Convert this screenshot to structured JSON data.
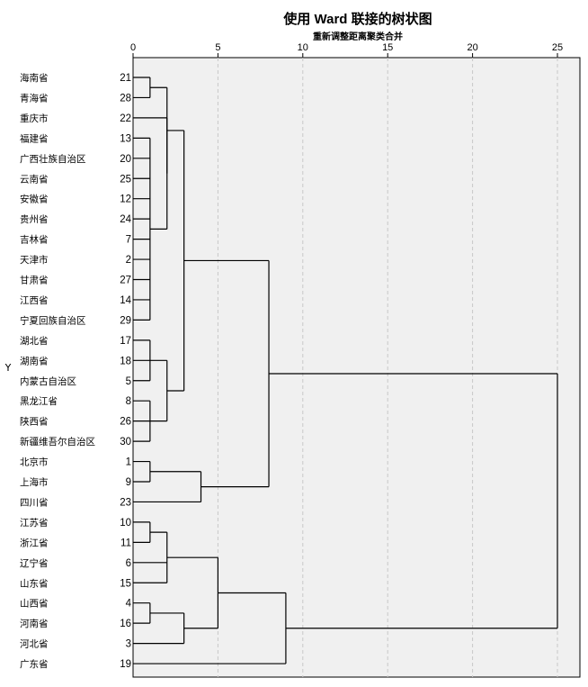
{
  "chart_data": {
    "type": "dendrogram",
    "title": "使用 Ward 联接的树状图",
    "xlabel": "重新调整距离聚类合并",
    "ylabel": "Y",
    "xlim": [
      0,
      25
    ],
    "x_ticks": [
      0,
      5,
      10,
      15,
      20,
      25
    ],
    "grid": "vertical-dashed",
    "plot_background": "#f0f0f0",
    "line_color": "#000000",
    "leaves": [
      {
        "name": "海南省",
        "id": "21"
      },
      {
        "name": "青海省",
        "id": "28"
      },
      {
        "name": "重庆市",
        "id": "22"
      },
      {
        "name": "福建省",
        "id": "13"
      },
      {
        "name": "广西壮族自治区",
        "id": "20"
      },
      {
        "name": "云南省",
        "id": "25"
      },
      {
        "name": "安徽省",
        "id": "12"
      },
      {
        "name": "贵州省",
        "id": "24"
      },
      {
        "name": "吉林省",
        "id": "7"
      },
      {
        "name": "天津市",
        "id": "2"
      },
      {
        "name": "甘肃省",
        "id": "27"
      },
      {
        "name": "江西省",
        "id": "14"
      },
      {
        "name": "宁夏回族自治区",
        "id": "29"
      },
      {
        "name": "湖北省",
        "id": "17"
      },
      {
        "name": "湖南省",
        "id": "18"
      },
      {
        "name": "内蒙古自治区",
        "id": "5"
      },
      {
        "name": "黑龙江省",
        "id": "8"
      },
      {
        "name": "陕西省",
        "id": "26"
      },
      {
        "name": "新疆维吾尔自治区",
        "id": "30"
      },
      {
        "name": "北京市",
        "id": "1"
      },
      {
        "name": "上海市",
        "id": "9"
      },
      {
        "name": "四川省",
        "id": "23"
      },
      {
        "name": "江苏省",
        "id": "10"
      },
      {
        "name": "浙江省",
        "id": "11"
      },
      {
        "name": "辽宁省",
        "id": "6"
      },
      {
        "name": "山东省",
        "id": "15"
      },
      {
        "name": "山西省",
        "id": "4"
      },
      {
        "name": "河南省",
        "id": "16"
      },
      {
        "name": "河北省",
        "id": "3"
      },
      {
        "name": "广东省",
        "id": "19"
      }
    ],
    "merges": [
      {
        "children": [
          0,
          1
        ],
        "distance": 1.0
      },
      {
        "children": [
          3,
          4,
          5,
          6,
          7,
          8,
          9,
          10,
          11,
          12
        ],
        "distance": 1.0
      },
      {
        "children": [
          31,
          2
        ],
        "distance": 2.0
      },
      {
        "children": [
          32,
          30
        ],
        "distance": 2.0
      },
      {
        "children": [
          13,
          14,
          15
        ],
        "distance": 1.0
      },
      {
        "children": [
          16,
          17,
          18
        ],
        "distance": 1.0
      },
      {
        "children": [
          34,
          35
        ],
        "distance": 2.0
      },
      {
        "children": [
          33,
          36
        ],
        "distance": 3.0
      },
      {
        "children": [
          19,
          20
        ],
        "distance": 1.0
      },
      {
        "children": [
          38,
          21
        ],
        "distance": 4.0
      },
      {
        "children": [
          37,
          39
        ],
        "distance": 8.0
      },
      {
        "children": [
          22,
          23
        ],
        "distance": 1.0
      },
      {
        "children": [
          41,
          24,
          25
        ],
        "distance": 2.0
      },
      {
        "children": [
          26,
          27
        ],
        "distance": 1.0
      },
      {
        "children": [
          43,
          28
        ],
        "distance": 3.0
      },
      {
        "children": [
          42,
          44
        ],
        "distance": 5.0
      },
      {
        "children": [
          45,
          29
        ],
        "distance": 9.0
      },
      {
        "children": [
          40,
          46
        ],
        "distance": 25.0
      }
    ]
  }
}
